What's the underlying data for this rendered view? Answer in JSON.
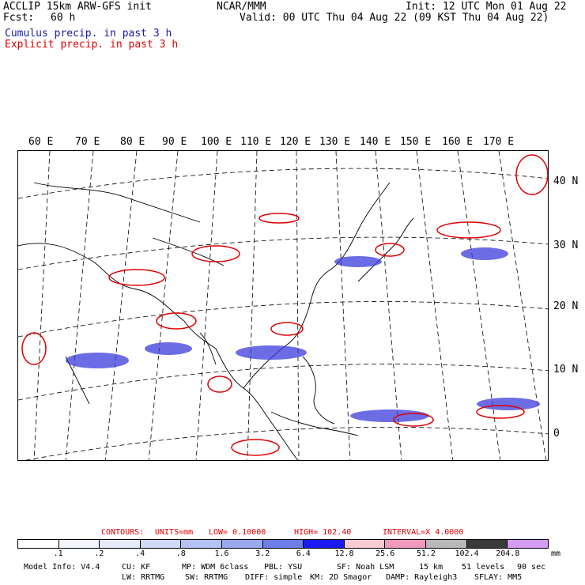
{
  "header": {
    "left_line1": "ACCLIP 15km ARW-GFS init",
    "left_line2_label": "Fcst:",
    "left_line2_value": "60 h",
    "center": "NCAR/MMM",
    "init": "Init: 12 UTC Mon 01 Aug 22",
    "valid": "Valid: 00 UTC Thu 04 Aug 22 (09 KST Thu 04 Aug 22)",
    "cumulus_label": "Cumulus precip. in past 3 h",
    "explicit_label": "Explicit precip. in past 3 h"
  },
  "colors": {
    "cumulus": "#1a1aa6",
    "explicit": "#e00000",
    "coast": "#000000"
  },
  "map": {
    "lon_labels": [
      "60 E",
      "70 E",
      "80 E",
      "90 E",
      "100 E",
      "110 E",
      "120 E",
      "130 E",
      "140 E",
      "150 E",
      "160 E",
      "170 E"
    ],
    "lat_labels": [
      "40 N",
      "30 N",
      "20 N",
      "10 N",
      "0"
    ]
  },
  "contours": {
    "label": "CONTOURS:",
    "units": "UNITS=mm",
    "low": "LOW= 0.10000",
    "high": "HIGH= 102.40",
    "interval": "INTERVAL=X 4.0000"
  },
  "legend": {
    "ticks": [
      ".1",
      ".2",
      ".4",
      ".8",
      "1.6",
      "3.2",
      "6.4",
      "12.8",
      "25.6",
      "51.2",
      "102.4",
      "204.8"
    ],
    "units": "mm",
    "colors": [
      "#ffffff",
      "#f2f5fd",
      "#e4ebfb",
      "#cdd9f7",
      "#b3c3f4",
      "#9aa9f0",
      "#6e7ee9",
      "#1b1bf0",
      "#f7cbd2",
      "#f09ac0",
      "#b8b8b8",
      "#3a3a3a",
      "#d59cf6"
    ]
  },
  "footer": {
    "line1": [
      "Model Info: V4.4",
      "CU: KF",
      "MP: WDM 6class",
      "PBL: YSU",
      "SF: Noah LSM",
      "15 km",
      "51 levels",
      "90 sec"
    ],
    "line2": [
      "LW: RRTMG",
      "SW: RRTMG",
      "DIFF: simple",
      "KM: 2D Smagor",
      "DAMP: Rayleigh3",
      "SFLAY: MM5"
    ]
  }
}
